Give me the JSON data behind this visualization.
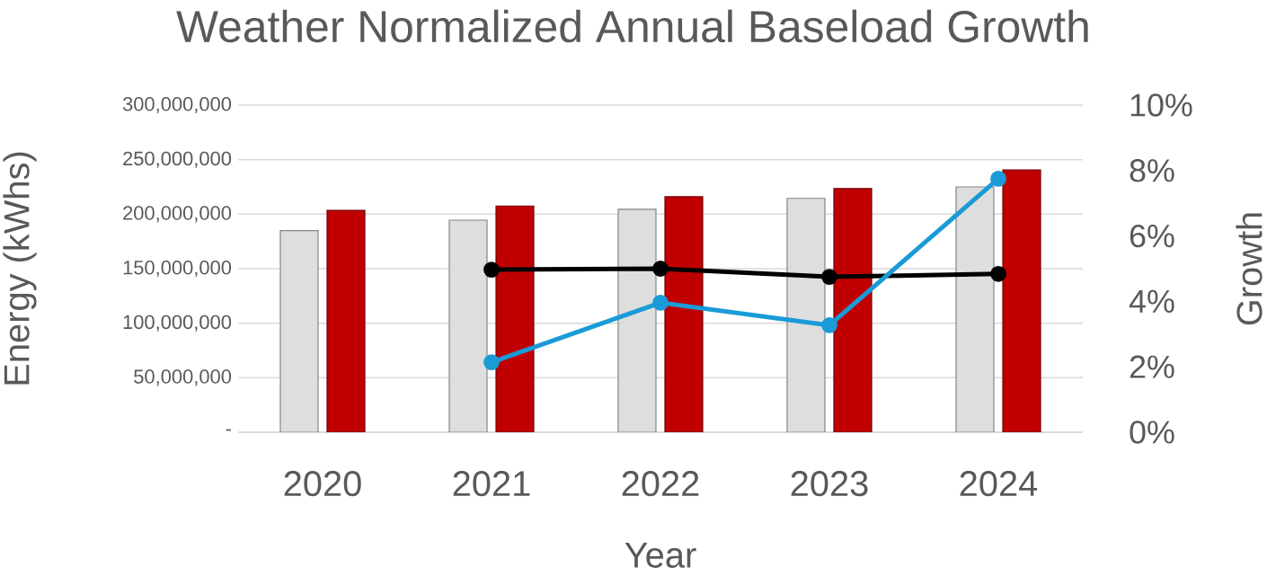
{
  "chart_data": {
    "type": "bar",
    "title": "Weather Normalized Annual Baseload Growth",
    "xlabel": "Year",
    "ylabel": "Energy (kWhs)",
    "y2label": "Growth",
    "categories": [
      "2020",
      "2021",
      "2022",
      "2023",
      "2024"
    ],
    "series": [
      {
        "color": "#dedede",
        "values": [
          185000000,
          194500000,
          204500000,
          214500000,
          225000000
        ]
      },
      {
        "color": "#c00000",
        "values": [
          203500000,
          207500000,
          216000000,
          223500000,
          240500000
        ]
      },
      {
        "type": "line",
        "axis": "y2",
        "color": "#000000",
        "values": [
          null,
          4.97,
          5.0,
          4.75,
          4.84
        ]
      },
      {
        "type": "line",
        "axis": "y2",
        "color": "#1a9bd7",
        "values": [
          null,
          2.14,
          3.96,
          3.27,
          7.75
        ]
      }
    ],
    "ylim": [
      0,
      300000000
    ],
    "yticks": [
      {
        "value": 0,
        "label": "-"
      },
      {
        "value": 50000000,
        "label": "50,000,000"
      },
      {
        "value": 100000000,
        "label": "100,000,000"
      },
      {
        "value": 150000000,
        "label": "150,000,000"
      },
      {
        "value": 200000000,
        "label": "200,000,000"
      },
      {
        "value": 250000000,
        "label": "250,000,000"
      },
      {
        "value": 300000000,
        "label": "300,000,000"
      }
    ],
    "y2lim": [
      0,
      10
    ],
    "y2ticks": [
      {
        "value": 0,
        "label": "0%"
      },
      {
        "value": 2,
        "label": "2%"
      },
      {
        "value": 4,
        "label": "4%"
      },
      {
        "value": 6,
        "label": "6%"
      },
      {
        "value": 8,
        "label": "8%"
      },
      {
        "value": 10,
        "label": "10%"
      }
    ],
    "grid": "y",
    "legend": false,
    "marker": "circle"
  }
}
